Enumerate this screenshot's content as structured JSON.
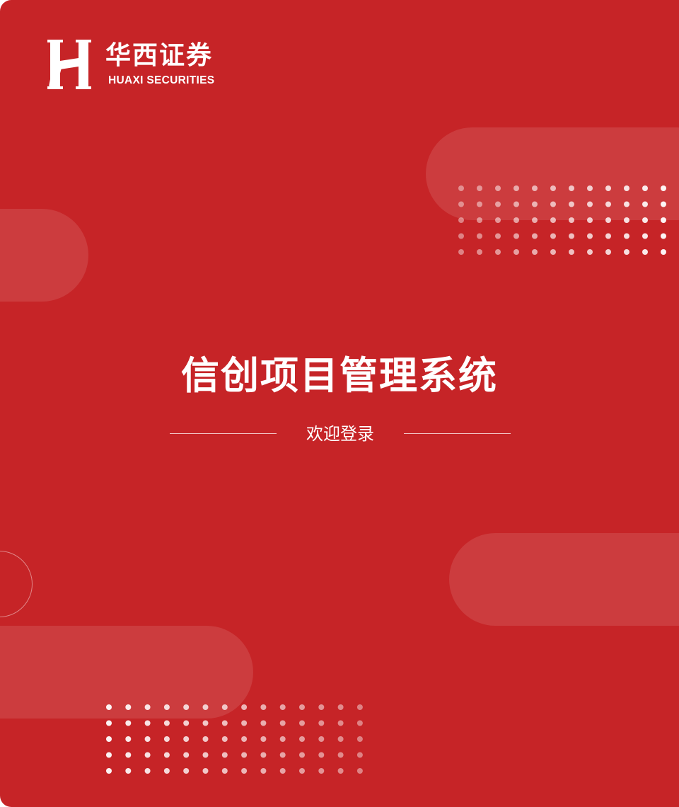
{
  "brand": {
    "name_cn": "华西证券",
    "name_en": "HUAXI SECURITIES",
    "logo_icon": "huaxi-h-logo-icon",
    "primary_color": "#c62427"
  },
  "login_banner": {
    "title": "信创项目管理系统",
    "subtitle": "欢迎登录"
  }
}
